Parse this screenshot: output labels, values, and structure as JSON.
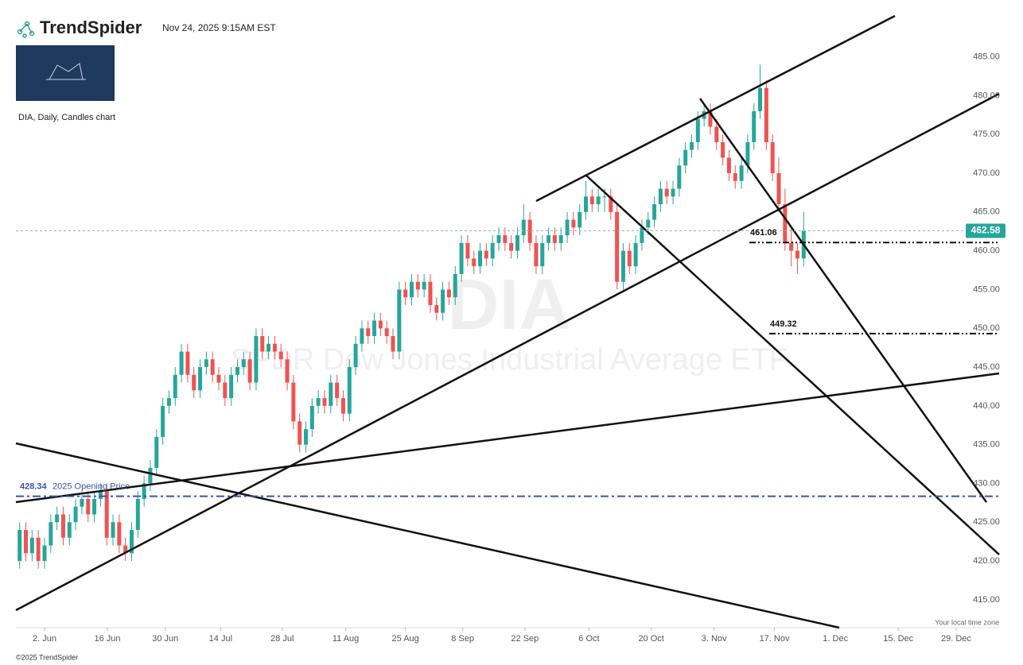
{
  "header": {
    "logo": "TrendSpider",
    "timestamp": "Nov 24, 2025 9:15AM EST",
    "chart_label": "DIA, Daily, Candles chart",
    "footer": "©2025 TrendSpider",
    "timezone_note": "Your local time zone"
  },
  "chart_data": {
    "type": "candlestick",
    "symbol": "DIA",
    "description": "SPDR Dow Jones Industrial Average ETF",
    "up_color": "#26a69a",
    "down_color": "#ef5350",
    "candles": [
      [
        420,
        425,
        419,
        424
      ],
      [
        424,
        425,
        420,
        421
      ],
      [
        421,
        424,
        420,
        423
      ],
      [
        423,
        424,
        419,
        420
      ],
      [
        420,
        423,
        419,
        422
      ],
      [
        422,
        426,
        421,
        425
      ],
      [
        425,
        427,
        424,
        426
      ],
      [
        426,
        427,
        422,
        423
      ],
      [
        423,
        426,
        422,
        425
      ],
      [
        425,
        428,
        424,
        427
      ],
      [
        427,
        429,
        426,
        428
      ],
      [
        428,
        429,
        425,
        426
      ],
      [
        426,
        429,
        425,
        428
      ],
      [
        428,
        430,
        427,
        429
      ],
      [
        429,
        430,
        422,
        423
      ],
      [
        423,
        426,
        422,
        425
      ],
      [
        425,
        426,
        421,
        422
      ],
      [
        422,
        423,
        420,
        421
      ],
      [
        421,
        425,
        420,
        424
      ],
      [
        424,
        429,
        423,
        428
      ],
      [
        428,
        431,
        427,
        430
      ],
      [
        430,
        433,
        429,
        432
      ],
      [
        432,
        437,
        431,
        436
      ],
      [
        436,
        441,
        435,
        440
      ],
      [
        440,
        442,
        439,
        441
      ],
      [
        441,
        445,
        440,
        444
      ],
      [
        444,
        448,
        443,
        447
      ],
      [
        447,
        448,
        443,
        444
      ],
      [
        444,
        445,
        441,
        442
      ],
      [
        442,
        446,
        441,
        445
      ],
      [
        445,
        447,
        444,
        446
      ],
      [
        446,
        447,
        443,
        444
      ],
      [
        444,
        445,
        442,
        443
      ],
      [
        443,
        444,
        440,
        441
      ],
      [
        441,
        445,
        440,
        444
      ],
      [
        444,
        446,
        443,
        445
      ],
      [
        445,
        447,
        444,
        446
      ],
      [
        446,
        447,
        442,
        443
      ],
      [
        443,
        450,
        442,
        449
      ],
      [
        449,
        450,
        446,
        447
      ],
      [
        447,
        449,
        446,
        448
      ],
      [
        448,
        449,
        446,
        447
      ],
      [
        447,
        448,
        445,
        446
      ],
      [
        446,
        447,
        442,
        443
      ],
      [
        443,
        444,
        437,
        438
      ],
      [
        438,
        439,
        434,
        435
      ],
      [
        435,
        438,
        434,
        437
      ],
      [
        437,
        441,
        436,
        440
      ],
      [
        440,
        442,
        439,
        441
      ],
      [
        441,
        442,
        439,
        440
      ],
      [
        440,
        444,
        439,
        443
      ],
      [
        443,
        444,
        440,
        441
      ],
      [
        441,
        442,
        438,
        439
      ],
      [
        439,
        446,
        438,
        445
      ],
      [
        445,
        449,
        444,
        448
      ],
      [
        448,
        451,
        447,
        450
      ],
      [
        450,
        451,
        448,
        449
      ],
      [
        449,
        452,
        448,
        451
      ],
      [
        451,
        452,
        449,
        450
      ],
      [
        450,
        451,
        448,
        449
      ],
      [
        449,
        450,
        446,
        447
      ],
      [
        447,
        456,
        446,
        455
      ],
      [
        455,
        456,
        453,
        454
      ],
      [
        454,
        457,
        453,
        456
      ],
      [
        456,
        457,
        454,
        455
      ],
      [
        455,
        457,
        454,
        456
      ],
      [
        456,
        457,
        452,
        453
      ],
      [
        453,
        454,
        451,
        452
      ],
      [
        452,
        456,
        451,
        455
      ],
      [
        455,
        456,
        453,
        454
      ],
      [
        454,
        458,
        453,
        457
      ],
      [
        457,
        462,
        456,
        461
      ],
      [
        461,
        462,
        458,
        459
      ],
      [
        459,
        460,
        457,
        458
      ],
      [
        458,
        461,
        457,
        460
      ],
      [
        460,
        461,
        458,
        459
      ],
      [
        459,
        462,
        458,
        461
      ],
      [
        461,
        463,
        460,
        462
      ],
      [
        462,
        463,
        460,
        461
      ],
      [
        461,
        462,
        459,
        460
      ],
      [
        460,
        463,
        459,
        462
      ],
      [
        462,
        466,
        461,
        464
      ],
      [
        464,
        465,
        460,
        461
      ],
      [
        461,
        462,
        457,
        458
      ],
      [
        458,
        462,
        457,
        461
      ],
      [
        461,
        463,
        460,
        462
      ],
      [
        462,
        463,
        460,
        461
      ],
      [
        461,
        463,
        460,
        462
      ],
      [
        462,
        465,
        461,
        464
      ],
      [
        464,
        465,
        462,
        463
      ],
      [
        463,
        466,
        462,
        465
      ],
      [
        465,
        469,
        464,
        467
      ],
      [
        467,
        468,
        465,
        466
      ],
      [
        466,
        468,
        465,
        467
      ],
      [
        467,
        468,
        465,
        467
      ],
      [
        467,
        468,
        464,
        465
      ],
      [
        465,
        466,
        455,
        456
      ],
      [
        456,
        461,
        455,
        460
      ],
      [
        460,
        461,
        457,
        458
      ],
      [
        458,
        462,
        457,
        461
      ],
      [
        461,
        464,
        460,
        463
      ],
      [
        463,
        465,
        462,
        464
      ],
      [
        464,
        467,
        463,
        466
      ],
      [
        466,
        469,
        465,
        468
      ],
      [
        468,
        469,
        466,
        467
      ],
      [
        467,
        469,
        466,
        468
      ],
      [
        468,
        472,
        467,
        471
      ],
      [
        471,
        474,
        470,
        473
      ],
      [
        473,
        475,
        472,
        474
      ],
      [
        474,
        478,
        473,
        477
      ],
      [
        477,
        479,
        476,
        478
      ],
      [
        478,
        479,
        475,
        476
      ],
      [
        476,
        477,
        473,
        474
      ],
      [
        474,
        475,
        471,
        472
      ],
      [
        472,
        473,
        469,
        470
      ],
      [
        470,
        471,
        468,
        469
      ],
      [
        469,
        472,
        468,
        471
      ],
      [
        471,
        475,
        470,
        474
      ],
      [
        474,
        479,
        473,
        478
      ],
      [
        478,
        484,
        477,
        481
      ],
      [
        481,
        482,
        473,
        474
      ],
      [
        474,
        475,
        469,
        470
      ],
      [
        470,
        472,
        465,
        466
      ],
      [
        466,
        468,
        460,
        461
      ],
      [
        461,
        463,
        458,
        460
      ],
      [
        460,
        461,
        457,
        459
      ],
      [
        459,
        465,
        458,
        462.58
      ]
    ],
    "last_price": {
      "value": 462.58,
      "label": "462.58"
    },
    "levels": [
      {
        "value": 461.06,
        "label": "461.06"
      },
      {
        "value": 449.32,
        "label": "449.32"
      }
    ],
    "opening_price": {
      "value": 428.34,
      "label": "428.34",
      "text": "2025 Opening Price"
    },
    "xlim": [
      -0.6,
      156.9
    ],
    "xticks": [
      {
        "value": 4,
        "label": "2. Jun"
      },
      {
        "value": 14.1,
        "label": "16 Jun"
      },
      {
        "value": 23.4,
        "label": "30 Jun"
      },
      {
        "value": 32.3,
        "label": "14 Jul"
      },
      {
        "value": 42.2,
        "label": "28 Jul"
      },
      {
        "value": 52.4,
        "label": "11 Aug"
      },
      {
        "value": 62,
        "label": "25 Aug"
      },
      {
        "value": 71.2,
        "label": "8 Sep"
      },
      {
        "value": 81.2,
        "label": "22 Sep"
      },
      {
        "value": 91.5,
        "label": "6 Oct"
      },
      {
        "value": 101.5,
        "label": "20 Oct"
      },
      {
        "value": 111.6,
        "label": "3. Nov"
      },
      {
        "value": 121.3,
        "label": "17. Nov"
      },
      {
        "value": 131.1,
        "label": "1. Dec"
      },
      {
        "value": 141.2,
        "label": "15. Dec"
      },
      {
        "value": 150.5,
        "label": "29. Dec"
      }
    ],
    "ylim": [
      411.4,
      490.8
    ],
    "yticks": [
      {
        "value": 415,
        "label": "415.00"
      },
      {
        "value": 420,
        "label": "420.00"
      },
      {
        "value": 425,
        "label": "425.00"
      },
      {
        "value": 430,
        "label": "430.00"
      },
      {
        "value": 435,
        "label": "435.00"
      },
      {
        "value": 440,
        "label": "440.00"
      },
      {
        "value": 445,
        "label": "445.00"
      },
      {
        "value": 450,
        "label": "450.00"
      },
      {
        "value": 455,
        "label": "455.00"
      },
      {
        "value": 460,
        "label": "460.00"
      },
      {
        "value": 465,
        "label": "465.00"
      },
      {
        "value": 470,
        "label": "470.00"
      },
      {
        "value": 475,
        "label": "475.00"
      },
      {
        "value": 480,
        "label": "480.00"
      },
      {
        "value": 485,
        "label": "485.00"
      }
    ]
  }
}
